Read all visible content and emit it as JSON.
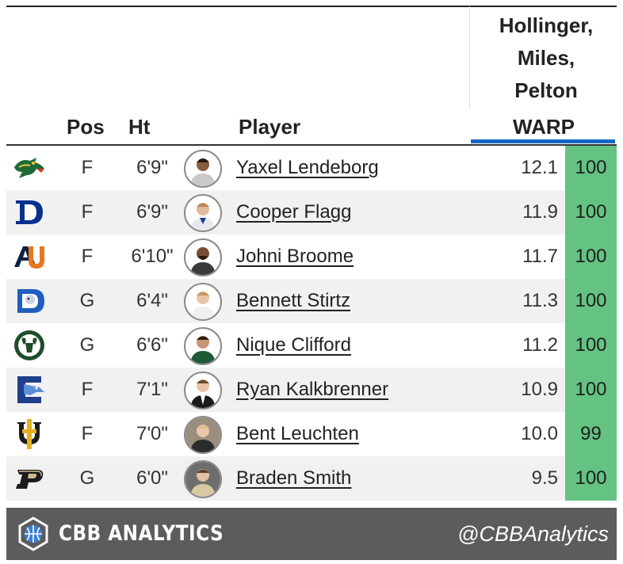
{
  "header": {
    "group_title": [
      "Hollinger,",
      "Miles,",
      "Pelton"
    ],
    "columns": {
      "pos": "Pos",
      "ht": "Ht",
      "player": "Player",
      "warp": "WARP"
    }
  },
  "rows": [
    {
      "school_logo": "uab-dragon-logo",
      "pos": "F",
      "ht": "6'9\"",
      "player": "Yaxel Lendeborg",
      "warp": "12.1",
      "pct": "100"
    },
    {
      "school_logo": "duke-logo",
      "pos": "F",
      "ht": "6'9\"",
      "player": "Cooper Flagg",
      "warp": "11.9",
      "pct": "100"
    },
    {
      "school_logo": "auburn-logo",
      "pos": "F",
      "ht": "6'10\"",
      "player": "Johni Broome",
      "warp": "11.7",
      "pct": "100"
    },
    {
      "school_logo": "dayton-flyer-logo",
      "pos": "G",
      "ht": "6'4\"",
      "player": "Bennett Stirtz",
      "warp": "11.3",
      "pct": "100"
    },
    {
      "school_logo": "colorado-state-ram-logo",
      "pos": "G",
      "ht": "6'6\"",
      "player": "Nique Clifford",
      "warp": "11.2",
      "pct": "100"
    },
    {
      "school_logo": "creighton-bluejay-logo",
      "pos": "F",
      "ht": "7'1\"",
      "player": "Ryan Kalkbrenner",
      "warp": "10.9",
      "pct": "100"
    },
    {
      "school_logo": "uc-irvine-logo",
      "pos": "F",
      "ht": "7'0\"",
      "player": "Bent Leuchten",
      "warp": "10.0",
      "pct": "99"
    },
    {
      "school_logo": "purdue-logo",
      "pos": "G",
      "ht": "6'0\"",
      "player": "Braden Smith",
      "warp": "9.5",
      "pct": "100"
    }
  ],
  "footer": {
    "brand": "CBB ANALYTICS",
    "handle": "@CBBAnalytics"
  },
  "colors": {
    "percentile_good": "#64c382",
    "warp_accent": "#1467c2",
    "footer_bg": "#5c5c5c"
  }
}
